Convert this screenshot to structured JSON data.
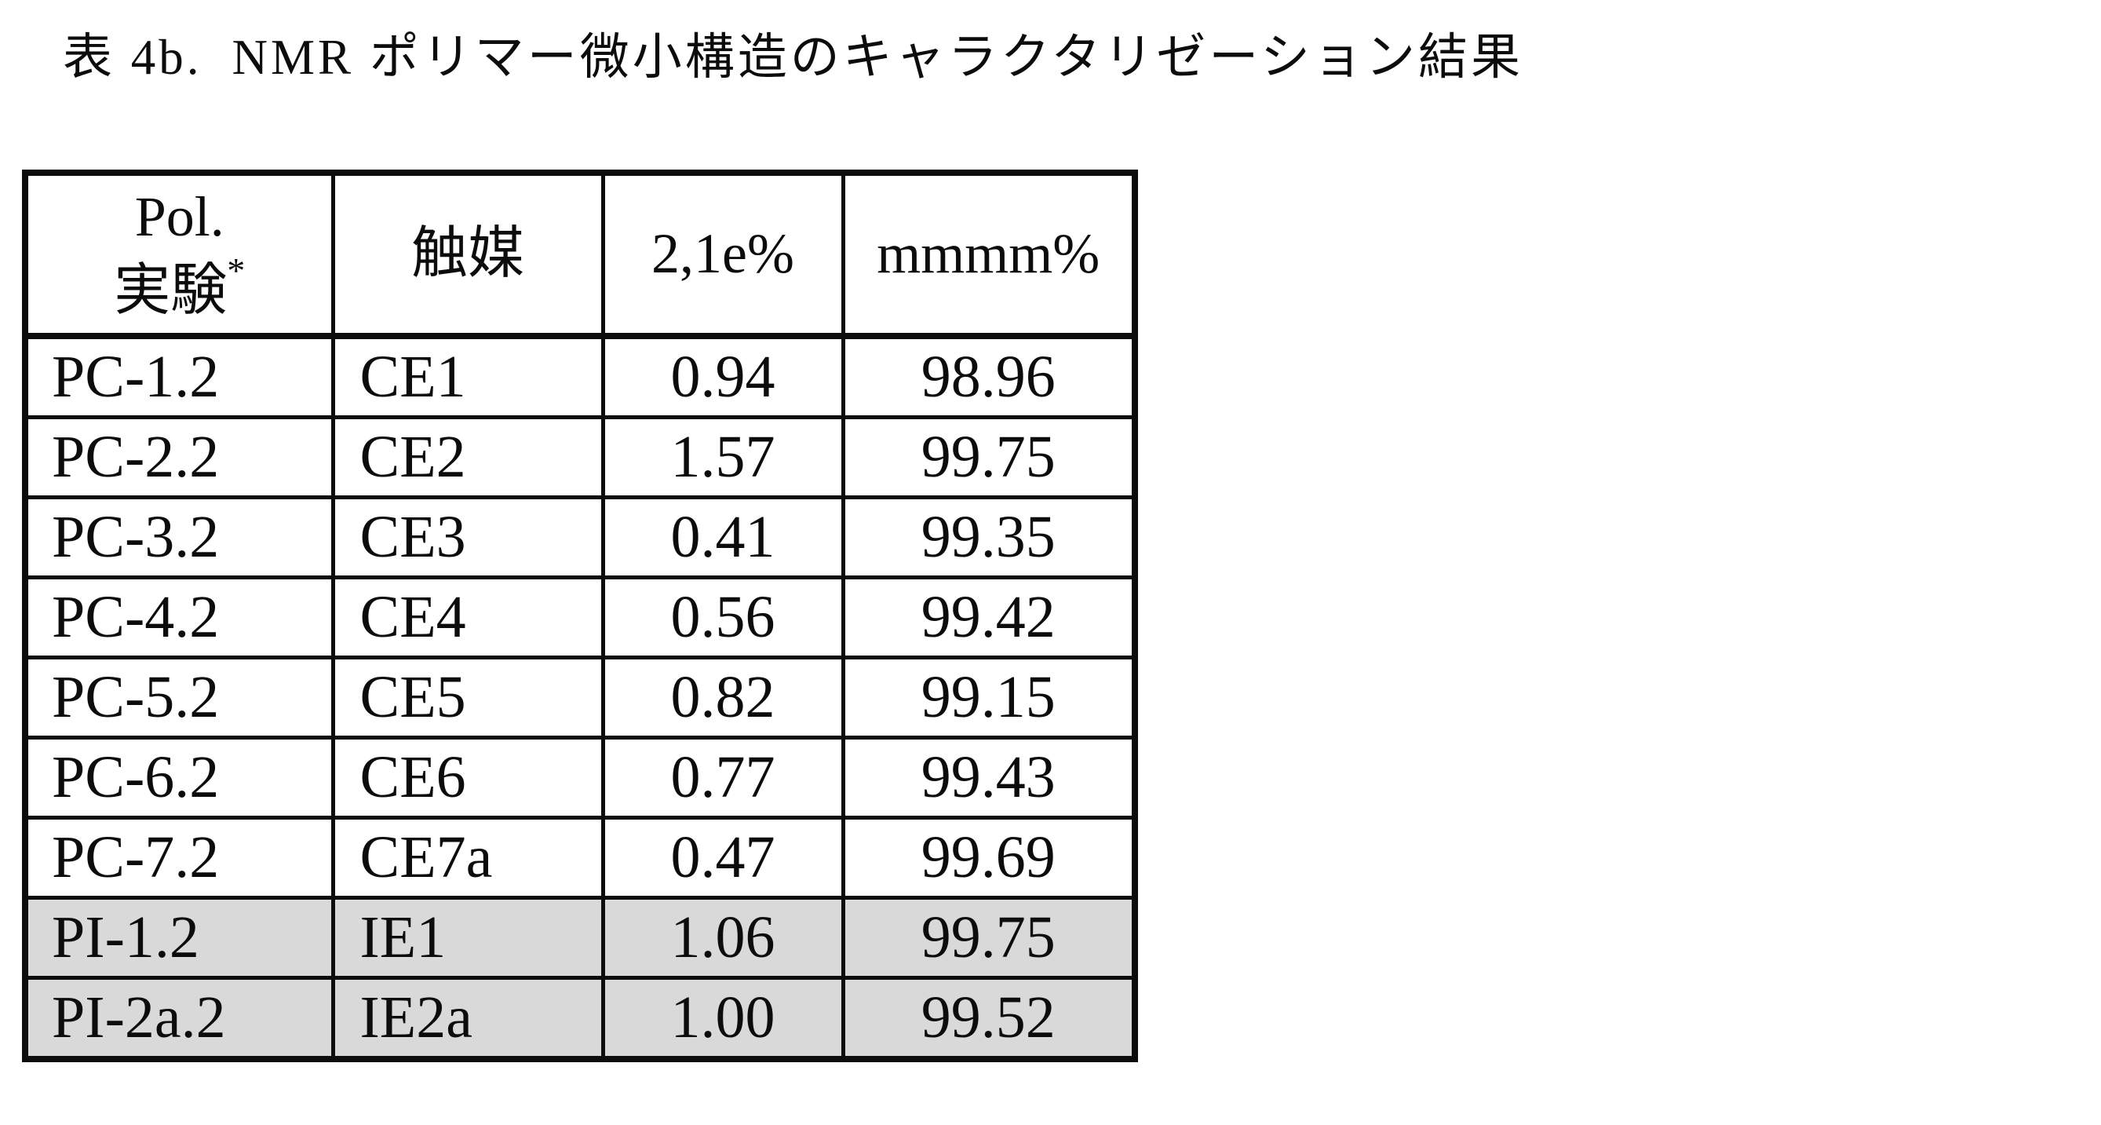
{
  "title": {
    "prefix": "表 4b.",
    "text": "NMR ポリマー微小構造のキャラクタリゼーション結果"
  },
  "table": {
    "header": {
      "experiment_line1": "Pol.",
      "experiment_line2": "実験",
      "experiment_superscript": "*",
      "catalyst": "触媒",
      "e21": "2,1e%",
      "mmmm": "mmmm%"
    },
    "rows": [
      {
        "experiment": "PC-1.2",
        "catalyst": "CE1",
        "e21_pct": "0.94",
        "mmmm_pct": "98.96"
      },
      {
        "experiment": "PC-2.2",
        "catalyst": "CE2",
        "e21_pct": "1.57",
        "mmmm_pct": "99.75"
      },
      {
        "experiment": "PC-3.2",
        "catalyst": "CE3",
        "e21_pct": "0.41",
        "mmmm_pct": "99.35"
      },
      {
        "experiment": "PC-4.2",
        "catalyst": "CE4",
        "e21_pct": "0.56",
        "mmmm_pct": "99.42"
      },
      {
        "experiment": "PC-5.2",
        "catalyst": "CE5",
        "e21_pct": "0.82",
        "mmmm_pct": "99.15"
      },
      {
        "experiment": "PC-6.2",
        "catalyst": "CE6",
        "e21_pct": "0.77",
        "mmmm_pct": "99.43"
      },
      {
        "experiment": "PC-7.2",
        "catalyst": "CE7a",
        "e21_pct": "0.47",
        "mmmm_pct": "99.69"
      },
      {
        "experiment": "PI-1.2",
        "catalyst": "IE1",
        "e21_pct": "1.06",
        "mmmm_pct": "99.75"
      },
      {
        "experiment": "PI-2a.2",
        "catalyst": "IE2a",
        "e21_pct": "1.00",
        "mmmm_pct": "99.52"
      }
    ],
    "shaded_row_color": "#d9d9d9",
    "border_color": "#0d0d0d"
  }
}
